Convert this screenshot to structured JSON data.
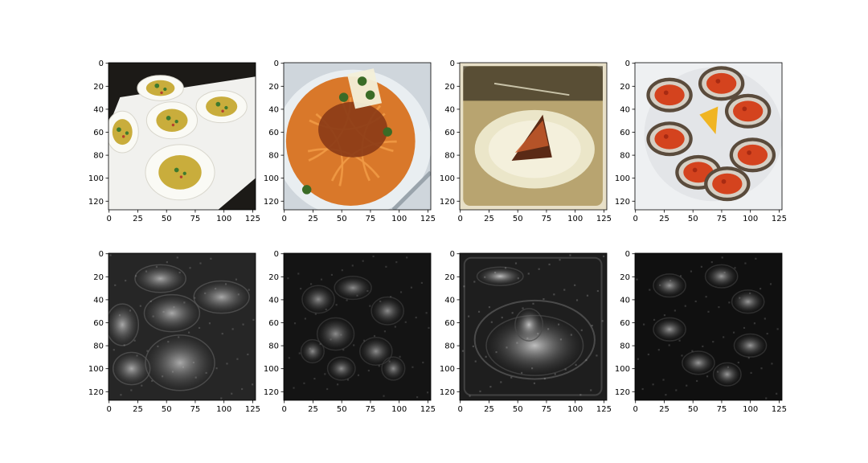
{
  "figure": {
    "layout": "2 rows x 4 columns of image panels (matplotlib imshow grid)",
    "rows": [
      {
        "name": "original-images",
        "panels": [
          {
            "content": "deviled eggs on a white square plate",
            "palette": {
              "bg": "#1c1a17",
              "plate": "#f1f1ee",
              "egg": "#fafaf5",
              "yolk": "#c9ad3c",
              "garnish": "#3e7a2e",
              "paprika": "#b5402f"
            }
          },
          {
            "content": "spaghetti bolognese with parsley and parmesan",
            "palette": {
              "bg": "#cfd6dc",
              "plate": "#e9eef1",
              "pasta": "#d9782a",
              "sauce": "#8a3a16",
              "parsley": "#3a6b26",
              "cheese": "#f3efd8"
            }
          },
          {
            "content": "slice of chocolate cake on a white plate",
            "palette": {
              "table": "#b8a470",
              "shadow": "#3a3222",
              "plate": "#ebe6c9",
              "cake": "#5a2a16",
              "frosting": "#c55a2c",
              "frame": "#e8e0c8"
            }
          },
          {
            "content": "baked oysters with tomato topping and a lemon wedge",
            "palette": {
              "bg": "#eef0f2",
              "shell": "#d6cfc4",
              "shellDark": "#5a4b3c",
              "topping": "#d4431e",
              "lemon": "#f0b523"
            }
          }
        ]
      },
      {
        "name": "saliency-maps",
        "panels": [
          {
            "content": "grayscale activation map of deviled eggs",
            "palette": {
              "bg": "#262626",
              "mid": "#5a5a5a",
              "hi": "#b8b8b8"
            }
          },
          {
            "content": "grayscale activation map of spaghetti",
            "palette": {
              "bg": "#141414",
              "mid": "#3a3a3a",
              "hi": "#9a9a9a"
            }
          },
          {
            "content": "grayscale activation map of cake plate",
            "palette": {
              "bg": "#1e1e1e",
              "mid": "#4a4a4a",
              "hi": "#d0d0d0"
            }
          },
          {
            "content": "grayscale activation map of oysters",
            "palette": {
              "bg": "#101010",
              "mid": "#3c3c3c",
              "hi": "#a8a8a8"
            }
          }
        ]
      }
    ]
  },
  "chart_data": [
    {
      "type": "heatmap",
      "title": "",
      "xlabel": "",
      "ylabel": "",
      "xlim": [
        0,
        127
      ],
      "ylim": [
        127,
        0
      ],
      "xticks": [
        0,
        25,
        50,
        75,
        100,
        125
      ],
      "yticks": [
        0,
        20,
        40,
        60,
        80,
        100,
        120
      ]
    },
    {
      "type": "heatmap",
      "title": "",
      "xlabel": "",
      "ylabel": "",
      "xlim": [
        0,
        127
      ],
      "ylim": [
        127,
        0
      ],
      "xticks": [
        0,
        25,
        50,
        75,
        100,
        125
      ],
      "yticks": [
        0,
        20,
        40,
        60,
        80,
        100,
        120
      ]
    },
    {
      "type": "heatmap",
      "title": "",
      "xlabel": "",
      "ylabel": "",
      "xlim": [
        0,
        127
      ],
      "ylim": [
        127,
        0
      ],
      "xticks": [
        0,
        25,
        50,
        75,
        100,
        125
      ],
      "yticks": [
        0,
        20,
        40,
        60,
        80,
        100,
        120
      ]
    },
    {
      "type": "heatmap",
      "title": "",
      "xlabel": "",
      "ylabel": "",
      "xlim": [
        0,
        127
      ],
      "ylim": [
        127,
        0
      ],
      "xticks": [
        0,
        25,
        50,
        75,
        100,
        125
      ],
      "yticks": [
        0,
        20,
        40,
        60,
        80,
        100,
        120
      ]
    },
    {
      "type": "heatmap",
      "title": "",
      "xlabel": "",
      "ylabel": "",
      "xlim": [
        0,
        127
      ],
      "ylim": [
        127,
        0
      ],
      "xticks": [
        0,
        25,
        50,
        75,
        100,
        125
      ],
      "yticks": [
        0,
        20,
        40,
        60,
        80,
        100,
        120
      ]
    },
    {
      "type": "heatmap",
      "title": "",
      "xlabel": "",
      "ylabel": "",
      "xlim": [
        0,
        127
      ],
      "ylim": [
        127,
        0
      ],
      "xticks": [
        0,
        25,
        50,
        75,
        100,
        125
      ],
      "yticks": [
        0,
        20,
        40,
        60,
        80,
        100,
        120
      ]
    },
    {
      "type": "heatmap",
      "title": "",
      "xlabel": "",
      "ylabel": "",
      "xlim": [
        0,
        127
      ],
      "ylim": [
        127,
        0
      ],
      "xticks": [
        0,
        25,
        50,
        75,
        100,
        125
      ],
      "yticks": [
        0,
        20,
        40,
        60,
        80,
        100,
        120
      ]
    },
    {
      "type": "heatmap",
      "title": "",
      "xlabel": "",
      "ylabel": "",
      "xlim": [
        0,
        127
      ],
      "ylim": [
        127,
        0
      ],
      "xticks": [
        0,
        25,
        50,
        75,
        100,
        125
      ],
      "yticks": [
        0,
        20,
        40,
        60,
        80,
        100,
        120
      ]
    }
  ]
}
